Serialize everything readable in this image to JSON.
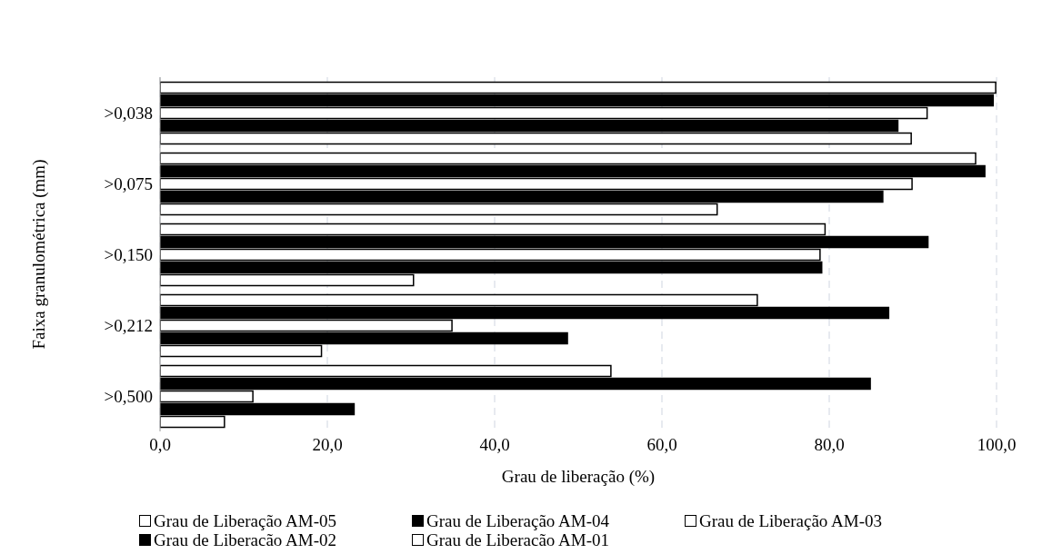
{
  "chart_data": {
    "type": "bar",
    "orientation": "horizontal",
    "xlabel": "Grau de liberação (%)",
    "ylabel": "Faixa granulométrica (mm)",
    "categories": [
      ">0,038",
      ">0,075",
      ">0,150",
      ">0,212",
      ">0,500"
    ],
    "series": [
      {
        "name": "Grau de Liberação AM-05",
        "color": "#ffffff",
        "values": [
          99.9,
          97.5,
          79.5,
          71.4,
          53.9
        ]
      },
      {
        "name": "Grau de Liberação AM-04",
        "color": "#000000",
        "values": [
          99.6,
          98.6,
          91.8,
          87.1,
          84.9
        ]
      },
      {
        "name": "Grau de Liberação AM-03",
        "color": "#ffffff",
        "values": [
          91.7,
          89.9,
          78.9,
          34.9,
          11.1
        ]
      },
      {
        "name": "Grau de Liberacão AM-02",
        "color": "#000000",
        "values": [
          88.2,
          86.4,
          79.1,
          48.7,
          23.2
        ]
      },
      {
        "name": "Grau de Liberacão AM-01",
        "color": "#ffffff",
        "values": [
          89.8,
          66.6,
          30.3,
          19.3,
          7.7
        ]
      }
    ],
    "xlim": [
      0,
      100
    ],
    "xticks": [
      {
        "value": 0,
        "label": "0,0"
      },
      {
        "value": 20,
        "label": "20,0"
      },
      {
        "value": 40,
        "label": "40,0"
      },
      {
        "value": 60,
        "label": "60,0"
      },
      {
        "value": 80,
        "label": "80,0"
      },
      {
        "value": 100,
        "label": "100,0"
      }
    ],
    "grid": "x",
    "legend": "bottom"
  }
}
